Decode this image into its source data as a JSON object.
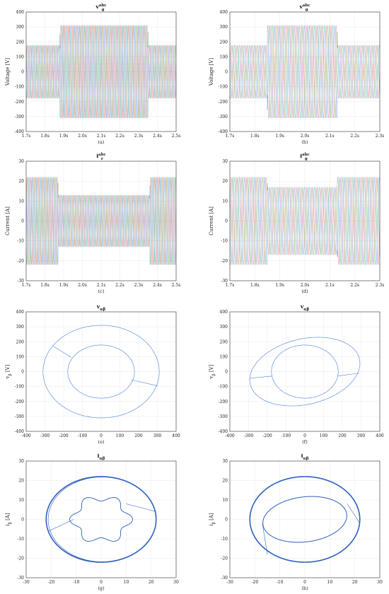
{
  "chart_data": [
    {
      "id": "a",
      "type": "line",
      "title": "v",
      "title_sub": "g",
      "title_sup": "abc",
      "caption": "(a)",
      "xlabel": "",
      "ylabel": "Voltage [V]",
      "xlim": [
        1.7,
        2.5
      ],
      "ylim": [
        -400,
        400
      ],
      "xticks": [
        1.7,
        1.8,
        1.9,
        2.0,
        2.1,
        2.2,
        2.3,
        2.4,
        2.5
      ],
      "xticklabels": [
        "1.7s",
        "1.8s",
        "1.9s",
        "2.0s",
        "2.1s",
        "2.2s",
        "2.3s",
        "2.4s",
        "2.5s"
      ],
      "yticks": [
        -400,
        -300,
        -200,
        -100,
        0,
        100,
        200,
        300,
        400
      ],
      "frequency_hz": 50,
      "segments": [
        {
          "t0": 1.7,
          "t1": 1.88,
          "amplitude": 178
        },
        {
          "t0": 1.88,
          "t1": 2.35,
          "amplitude": 310
        },
        {
          "t0": 2.35,
          "t1": 2.5,
          "amplitude": 178
        }
      ],
      "series_colors": [
        "#e0524a",
        "#3a9a4a",
        "#4a7de0"
      ]
    },
    {
      "id": "b",
      "type": "line",
      "title": "v",
      "title_sub": "g",
      "title_sup": "abc",
      "caption": "(b)",
      "xlabel": "",
      "ylabel": "Voltage [V]",
      "xlim": [
        1.7,
        2.3
      ],
      "ylim": [
        -400,
        400
      ],
      "xticks": [
        1.7,
        1.8,
        1.9,
        2.0,
        2.1,
        2.2,
        2.3
      ],
      "xticklabels": [
        "1.7s",
        "1.8s",
        "1.9s",
        "2.0s",
        "2.1s",
        "2.2s",
        "2.3s"
      ],
      "yticks": [
        -400,
        -300,
        -200,
        -100,
        0,
        100,
        200,
        300,
        400
      ],
      "frequency_hz": 50,
      "segments": [
        {
          "t0": 1.7,
          "t1": 1.85,
          "amplitude": 178
        },
        {
          "t0": 1.85,
          "t1": 2.13,
          "amplitude": 310
        },
        {
          "t0": 2.13,
          "t1": 2.3,
          "amplitude": 178
        }
      ],
      "series_colors": [
        "#e0524a",
        "#3a9a4a",
        "#4a7de0"
      ]
    },
    {
      "id": "c",
      "type": "line",
      "title": "i",
      "title_sub": "r",
      "title_sup": "abc",
      "caption": "(c)",
      "xlabel": "",
      "ylabel": "Current [A]",
      "xlim": [
        1.7,
        2.5
      ],
      "ylim": [
        -30,
        30
      ],
      "xticks": [
        1.7,
        1.8,
        1.9,
        2.0,
        2.1,
        2.2,
        2.3,
        2.4,
        2.5
      ],
      "xticklabels": [
        "1.7s",
        "1.8s",
        "1.9s",
        "2.0s",
        "2.1s",
        "2.2s",
        "2.3s",
        "2.4s",
        "2.5s"
      ],
      "yticks": [
        -30,
        -20,
        -10,
        0,
        10,
        20,
        30
      ],
      "frequency_hz": 50,
      "segments": [
        {
          "t0": 1.7,
          "t1": 1.87,
          "amplitude": 22
        },
        {
          "t0": 1.87,
          "t1": 2.36,
          "amplitude": 13
        },
        {
          "t0": 2.36,
          "t1": 2.5,
          "amplitude": 22
        }
      ],
      "series_colors": [
        "#e0524a",
        "#3a9a4a",
        "#4a7de0"
      ]
    },
    {
      "id": "d",
      "type": "line",
      "title": "i",
      "title_sub": "g",
      "title_sup": "abc",
      "caption": "(d)",
      "xlabel": "",
      "ylabel": "Current [A]",
      "xlim": [
        1.7,
        2.3
      ],
      "ylim": [
        -30,
        30
      ],
      "xticks": [
        1.7,
        1.8,
        1.9,
        2.0,
        2.1,
        2.2,
        2.3
      ],
      "xticklabels": [
        "1.7s",
        "1.8s",
        "1.9s",
        "2.0s",
        "2.1s",
        "2.2s",
        "2.3s"
      ],
      "yticks": [
        -30,
        -20,
        -10,
        0,
        10,
        20,
        30
      ],
      "frequency_hz": 50,
      "segments": [
        {
          "t0": 1.7,
          "t1": 1.85,
          "amplitude": 22
        },
        {
          "t0": 1.85,
          "t1": 2.13,
          "amplitude": 17
        },
        {
          "t0": 2.13,
          "t1": 2.3,
          "amplitude": 22
        }
      ],
      "series_colors": [
        "#e0524a",
        "#3a9a4a",
        "#4a7de0"
      ]
    },
    {
      "id": "e",
      "type": "line",
      "title": "v",
      "title_sub": "αβ",
      "title_sup": "",
      "caption": "(e)",
      "xlabel": "",
      "ylabel": "v",
      "ylabel_sub": "β",
      "ylabel_unit": " [V]",
      "xlim": [
        -400,
        400
      ],
      "ylim": [
        -400,
        400
      ],
      "xticks": [
        -400,
        -300,
        -200,
        -100,
        0,
        100,
        200,
        300,
        400
      ],
      "yticks": [
        -400,
        -300,
        -200,
        -100,
        0,
        100,
        200,
        300,
        400
      ],
      "curves": [
        {
          "kind": "ellipse",
          "cx": 0,
          "cy": 0,
          "rx": 310,
          "ry": 310,
          "tilt_deg": 0
        },
        {
          "kind": "ellipse",
          "cx": 0,
          "cy": 0,
          "rx": 178,
          "ry": 178,
          "tilt_deg": 0
        },
        {
          "kind": "segment",
          "x": [
            -255,
            -160
          ],
          "y": [
            170,
            95
          ]
        },
        {
          "kind": "segment",
          "x": [
            160,
            300
          ],
          "y": [
            -55,
            -95
          ]
        }
      ],
      "series_colors": [
        "#4a7de0"
      ]
    },
    {
      "id": "f",
      "type": "line",
      "title": "v",
      "title_sub": "αβ",
      "title_sup": "",
      "caption": "(f)",
      "xlabel": "",
      "ylabel": "v",
      "ylabel_sub": "β",
      "ylabel_unit": " [V]",
      "xlim": [
        -400,
        400
      ],
      "ylim": [
        -400,
        400
      ],
      "xticks": [
        -400,
        -300,
        -200,
        -100,
        0,
        100,
        200,
        300,
        400
      ],
      "yticks": [
        -400,
        -300,
        -200,
        -100,
        0,
        100,
        200,
        300,
        400
      ],
      "curves": [
        {
          "kind": "ellipse",
          "cx": 0,
          "cy": 0,
          "rx": 305,
          "ry": 215,
          "tilt_deg": 22
        },
        {
          "kind": "ellipse",
          "cx": 0,
          "cy": 0,
          "rx": 178,
          "ry": 178,
          "tilt_deg": 0
        },
        {
          "kind": "segment",
          "x": [
            -295,
            -175
          ],
          "y": [
            -45,
            -30
          ]
        },
        {
          "kind": "segment",
          "x": [
            175,
            290
          ],
          "y": [
            -30,
            -10
          ]
        }
      ],
      "series_colors": [
        "#4a7de0"
      ]
    },
    {
      "id": "g",
      "type": "line",
      "title": "i",
      "title_sub": "αβ",
      "title_sup": "",
      "caption": "(g)",
      "xlabel": "",
      "ylabel": "i",
      "ylabel_sub": "β",
      "ylabel_unit": " [A]",
      "xlim": [
        -30,
        30
      ],
      "ylim": [
        -30,
        30
      ],
      "xticks": [
        -30,
        -20,
        -10,
        0,
        10,
        20,
        30
      ],
      "yticks": [
        -30,
        -20,
        -10,
        0,
        10,
        20,
        30
      ],
      "curves": [
        {
          "kind": "ellipse",
          "cx": 0,
          "cy": 0,
          "rx": 22,
          "ry": 22,
          "tilt_deg": 0,
          "weight": 1.6
        },
        {
          "kind": "ellipse",
          "cx": 0.4,
          "cy": 0,
          "rx": 21.6,
          "ry": 21.8,
          "tilt_deg": 0,
          "weight": 0.6
        },
        {
          "kind": "flower",
          "cx": 0,
          "cy": 0,
          "r": 11,
          "petals": 6,
          "depth": 1.6
        },
        {
          "kind": "segment",
          "x": [
            -11,
            -21
          ],
          "y": [
            0,
            -6
          ]
        },
        {
          "kind": "segment",
          "x": [
            10,
            22
          ],
          "y": [
            8,
            4
          ]
        }
      ],
      "series_colors": [
        "#2f5fbf"
      ]
    },
    {
      "id": "h",
      "type": "line",
      "title": "i",
      "title_sub": "αβ",
      "title_sup": "",
      "caption": "(h)",
      "xlabel": "",
      "ylabel": "i",
      "ylabel_sub": "β",
      "ylabel_unit": " [A]",
      "xlim": [
        -30,
        30
      ],
      "ylim": [
        -30,
        30
      ],
      "xticks": [
        -30,
        -20,
        -10,
        0,
        10,
        20,
        30
      ],
      "yticks": [
        -30,
        -20,
        -10,
        0,
        10,
        20,
        30
      ],
      "curves": [
        {
          "kind": "ellipse",
          "cx": 0,
          "cy": 0,
          "rx": 22,
          "ry": 22,
          "tilt_deg": 0,
          "weight": 1.6
        },
        {
          "kind": "ellipse",
          "cx": 0,
          "cy": 0,
          "rx": 17,
          "ry": 11.5,
          "tilt_deg": 12,
          "weight": 1.0
        },
        {
          "kind": "segment",
          "x": [
            -17,
            -15
          ],
          "y": [
            -2,
            -18
          ]
        },
        {
          "kind": "segment",
          "x": [
            17,
            22
          ],
          "y": [
            8,
            -2
          ]
        }
      ],
      "series_colors": [
        "#2f5fbf"
      ]
    }
  ]
}
